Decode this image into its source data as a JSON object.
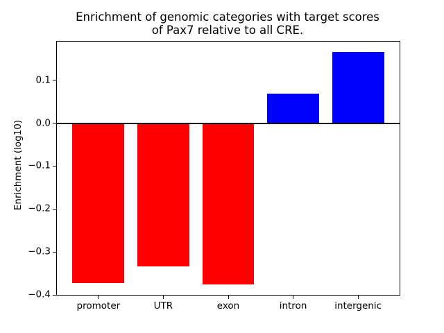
{
  "figure": {
    "title_lines": [
      "Enrichment of genomic categories with target scores",
      "of Pax7 relative to all CRE."
    ]
  },
  "chart_data": {
    "type": "bar",
    "title": "Enrichment of genomic categories with target scores of Pax7 relative to all CRE.",
    "categories": [
      "promoter",
      "UTR",
      "exon",
      "intron",
      "intergenic"
    ],
    "values": [
      -0.372,
      -0.334,
      -0.376,
      0.068,
      0.165
    ],
    "bar_colors": [
      "#ff0000",
      "#ff0000",
      "#ff0000",
      "#0000ff",
      "#0000ff"
    ],
    "xlabel": "",
    "ylabel": "Enrichment (log10)",
    "ylim": [
      -0.4,
      0.19
    ],
    "xlim": [
      -0.64,
      4.64
    ],
    "yticks": [
      0.1,
      0.0,
      -0.1,
      -0.2,
      -0.3,
      -0.4
    ],
    "bar_width": 0.8,
    "zero_line": true,
    "zero_line_color": "#000000",
    "grid": false,
    "background": "#ffffff"
  }
}
